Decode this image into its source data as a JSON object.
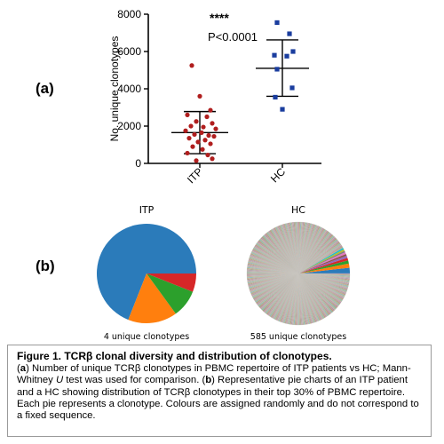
{
  "panel_a_label": "(a)",
  "panel_b_label": "(b)",
  "chart_data": [
    {
      "type": "scatter",
      "ylabel": "No. unique clonotypes",
      "ylim": [
        0,
        8000
      ],
      "yticks": [
        "0",
        "2000",
        "4000",
        "6000",
        "8000"
      ],
      "categories": [
        "ITP",
        "HC"
      ],
      "significance": "****",
      "pvalue": "P<0.0001",
      "colors": {
        "ITP": "#b01e1e",
        "HC": "#1a3d9e"
      },
      "series": [
        {
          "name": "ITP",
          "mean": 1650,
          "sd_low": 520,
          "sd_high": 2780,
          "values": [
            5250,
            3600,
            2850,
            2600,
            2500,
            2250,
            2150,
            2000,
            1950,
            1850,
            1750,
            1650,
            1550,
            1500,
            1450,
            1350,
            1250,
            1150,
            1050,
            900,
            750,
            550,
            450,
            250,
            150
          ]
        },
        {
          "name": "HC",
          "mean": 5100,
          "sd_low": 3600,
          "sd_high": 6620,
          "values": [
            7550,
            6950,
            6000,
            5800,
            5750,
            5050,
            4050,
            3550,
            2900
          ]
        }
      ]
    },
    {
      "type": "pie",
      "title": "ITP",
      "footer": "4 unique clonotypes",
      "slices": [
        {
          "value": 69,
          "color": "#2b7bba"
        },
        {
          "value": 16,
          "color": "#ff7f0e"
        },
        {
          "value": 9,
          "color": "#2ca02c"
        },
        {
          "value": 6,
          "color": "#d62728"
        }
      ]
    },
    {
      "type": "pie",
      "title": "HC",
      "footer": "585 unique clonotypes",
      "first_slices": [
        {
          "value": 1.8,
          "color": "#2b7bba"
        },
        {
          "value": 1.3,
          "color": "#ff7f0e"
        },
        {
          "value": 1.0,
          "color": "#2ca02c"
        },
        {
          "value": 0.8,
          "color": "#d62728"
        },
        {
          "value": 0.7,
          "color": "#9467bd"
        },
        {
          "value": 0.6,
          "color": "#8c564b"
        },
        {
          "value": 0.6,
          "color": "#e377c2"
        },
        {
          "value": 0.5,
          "color": "#7f7f7f"
        },
        {
          "value": 0.5,
          "color": "#bcbd22"
        },
        {
          "value": 0.5,
          "color": "#17becf"
        }
      ],
      "remaining_count": 575,
      "palette": [
        "#2b7bba",
        "#ff7f0e",
        "#2ca02c",
        "#d62728",
        "#9467bd",
        "#8c564b",
        "#e377c2",
        "#7f7f7f",
        "#bcbd22",
        "#17becf"
      ]
    }
  ],
  "caption": {
    "title": "Figure 1. TCRβ clonal diversity and distribution of clonotypes.",
    "a_label": "a",
    "text1": " Number of unique TCRβ clonotypes in PBMC repertoire of ITP patients vs HC; Mann-Whitney ",
    "u": "U",
    "text2": " test was used for comparison. (",
    "b_label": "b",
    "text3": ") Representative pie charts of an ITP patient and a HC showing distribution of TCRβ clonotypes in their top 30% of PBMC repertoire. Each pie represents a clonotype. Colours are assigned randomly and do not correspond to a fixed sequence."
  }
}
